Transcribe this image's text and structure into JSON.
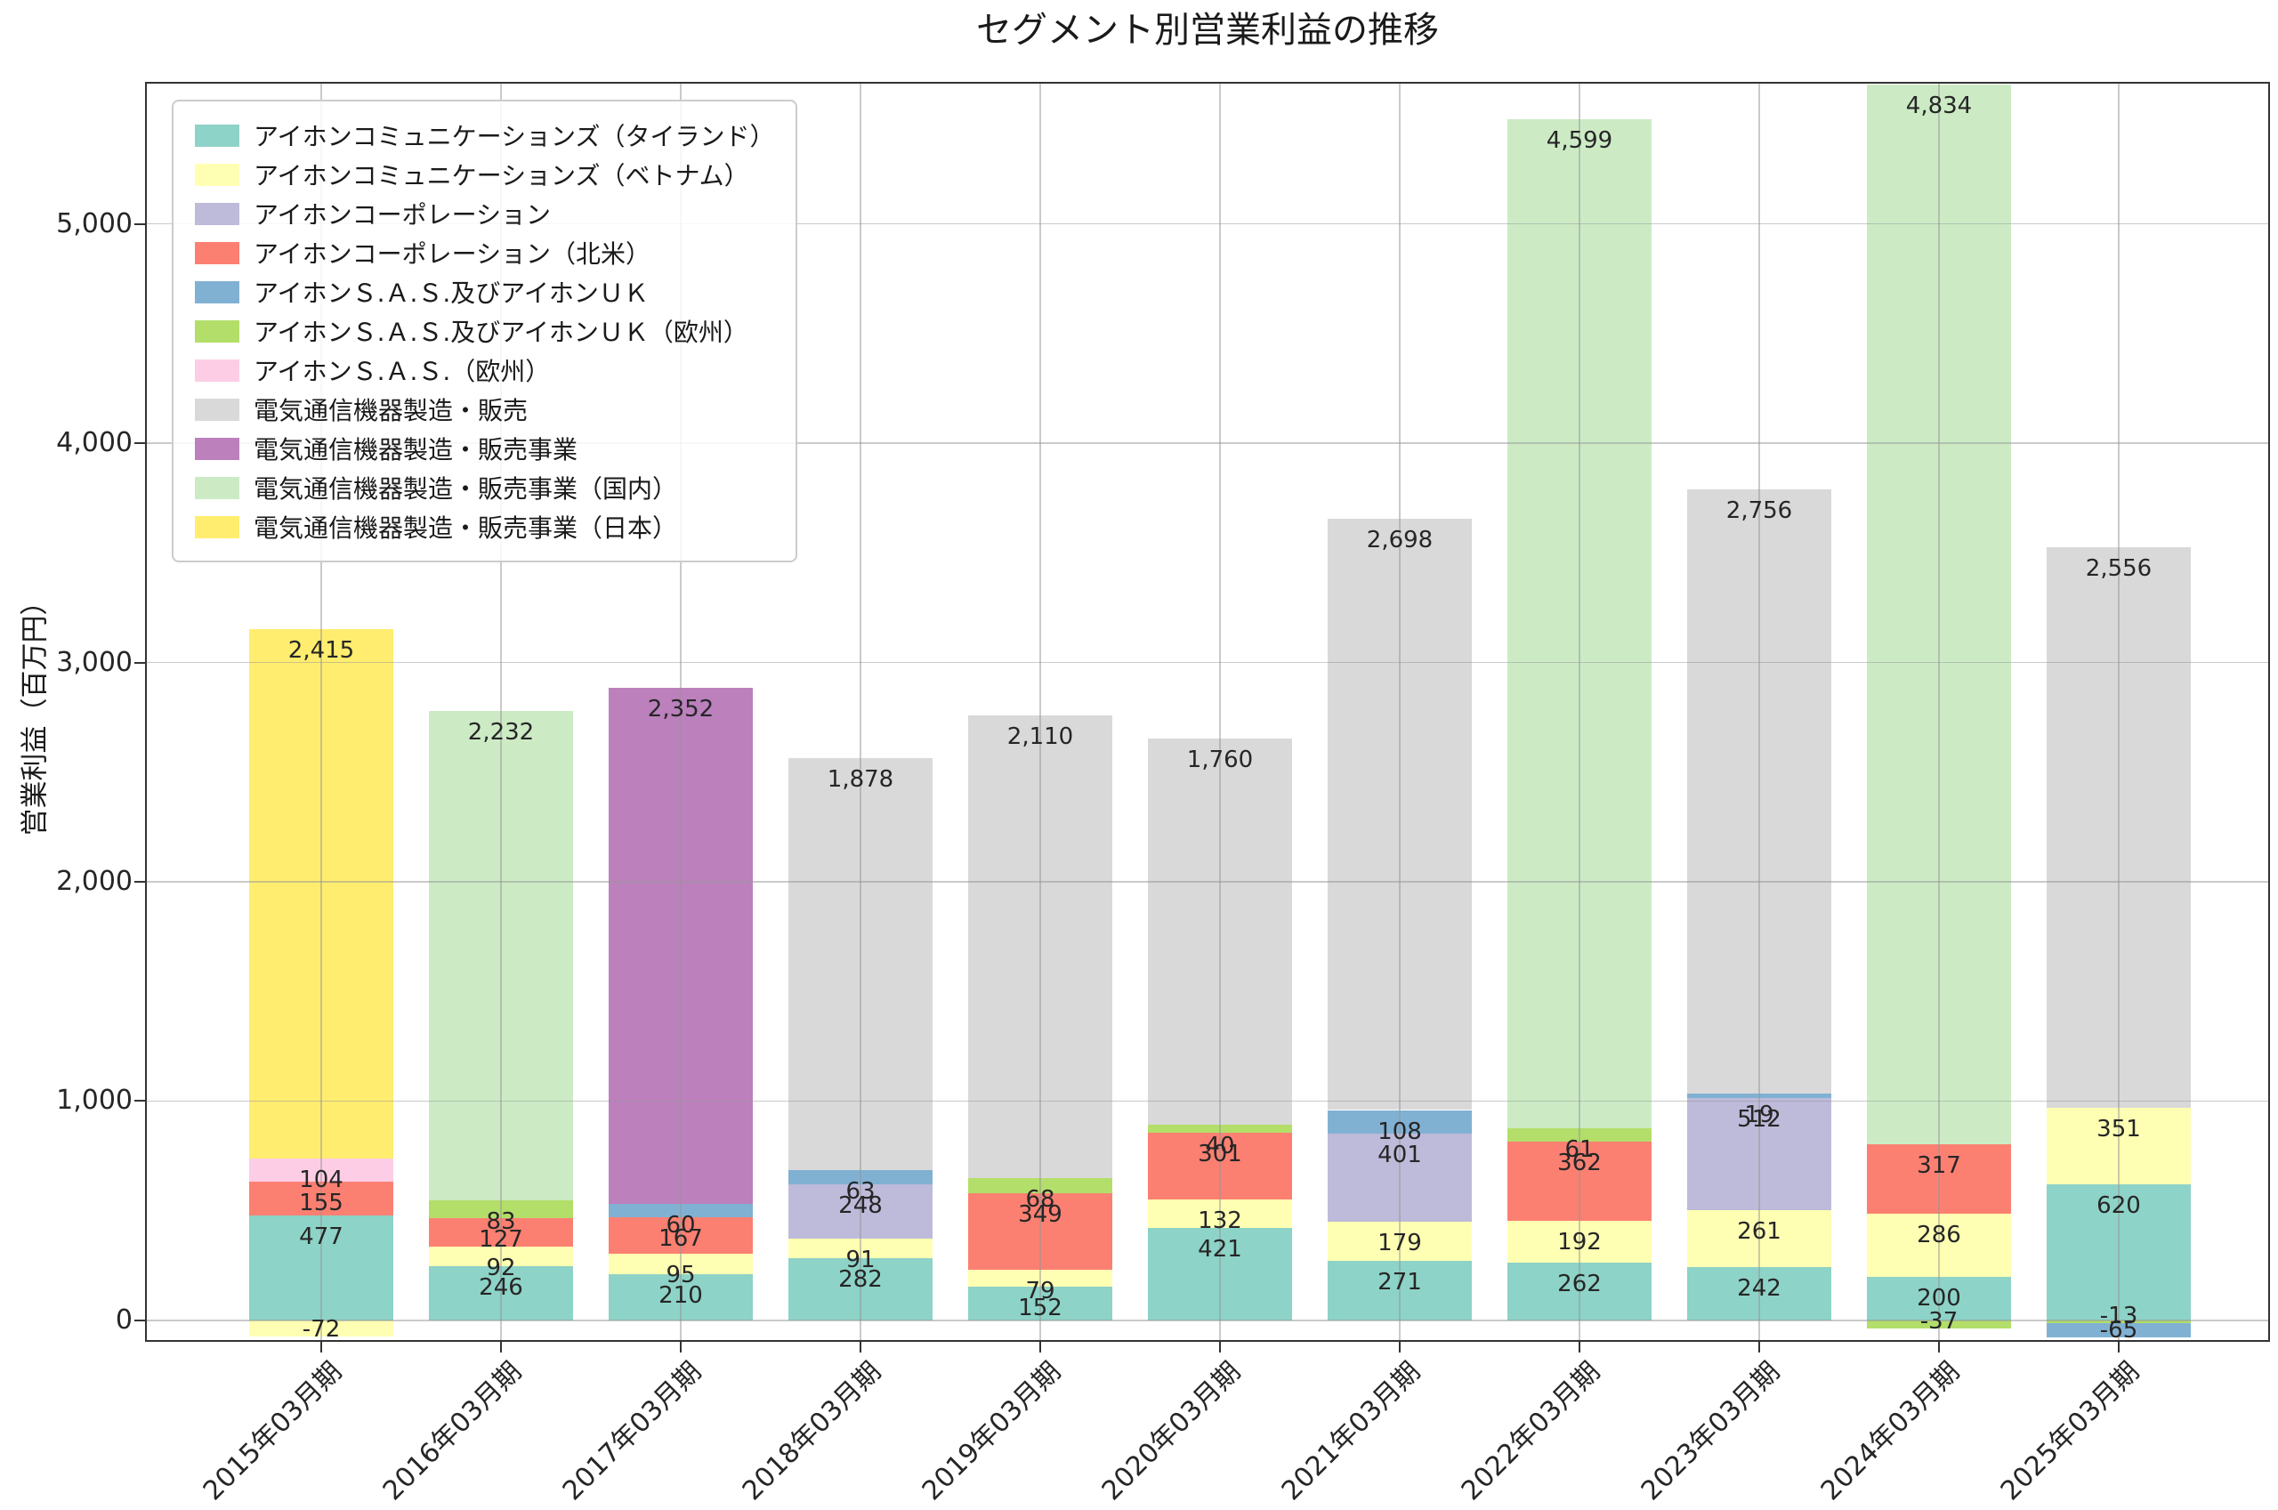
{
  "chart_data": {
    "type": "bar",
    "stacked": true,
    "title": "セグメント別営業利益の推移",
    "xlabel": "",
    "ylabel": "営業利益（百万円）",
    "ylim": [
      -90,
      5640
    ],
    "yticks": [
      0,
      1000,
      2000,
      3000,
      4000,
      5000
    ],
    "grid": true,
    "legend_position": "upper-left",
    "categories": [
      "2015年03月期",
      "2016年03月期",
      "2017年03月期",
      "2018年03月期",
      "2019年03月期",
      "2020年03月期",
      "2021年03月期",
      "2022年03月期",
      "2023年03月期",
      "2024年03月期",
      "2025年03月期"
    ],
    "series": [
      {
        "name": "アイホンコミュニケーションズ（タイランド）",
        "color": "#8dd3c7",
        "values": [
          477,
          246,
          210,
          282,
          152,
          421,
          271,
          262,
          242,
          200,
          620
        ]
      },
      {
        "name": "アイホンコミュニケーションズ（ベトナム）",
        "color": "#ffffb3",
        "values": [
          -72,
          92,
          95,
          91,
          79,
          132,
          179,
          192,
          261,
          286,
          351
        ]
      },
      {
        "name": "アイホンコーポレーション",
        "color": "#bebada",
        "values": [
          null,
          null,
          null,
          248,
          null,
          null,
          401,
          null,
          512,
          null,
          null
        ]
      },
      {
        "name": "アイホンコーポレーション（北米）",
        "color": "#fb8072",
        "values": [
          155,
          127,
          167,
          null,
          349,
          301,
          null,
          362,
          null,
          317,
          null
        ]
      },
      {
        "name": "アイホンＳ.Ａ.Ｓ.及びアイホンＵＫ",
        "color": "#80b1d3",
        "values": [
          null,
          null,
          60,
          63,
          null,
          null,
          108,
          null,
          19,
          null,
          -65
        ]
      },
      {
        "name": "アイホンＳ.Ａ.Ｓ.及びアイホンＵＫ（欧州）",
        "color": "#b3de69",
        "values": [
          null,
          83,
          null,
          null,
          68,
          40,
          null,
          61,
          null,
          -37,
          -13
        ]
      },
      {
        "name": "アイホンＳ.Ａ.Ｓ.（欧州）",
        "color": "#fccde5",
        "values": [
          104,
          null,
          null,
          null,
          null,
          null,
          null,
          null,
          null,
          null,
          null
        ]
      },
      {
        "name": "電気通信機器製造・販売",
        "color": "#d9d9d9",
        "values": [
          null,
          null,
          null,
          1878,
          2110,
          1760,
          2698,
          null,
          2756,
          null,
          2556
        ]
      },
      {
        "name": "電気通信機器製造・販売事業",
        "color": "#bc80bd",
        "values": [
          null,
          null,
          2352,
          null,
          null,
          null,
          null,
          null,
          null,
          null,
          null
        ]
      },
      {
        "name": "電気通信機器製造・販売事業（国内）",
        "color": "#ccebc5",
        "values": [
          null,
          2232,
          null,
          null,
          null,
          null,
          null,
          4599,
          null,
          4834,
          null
        ]
      },
      {
        "name": "電気通信機器製造・販売事業（日本）",
        "color": "#ffed6f",
        "values": [
          2415,
          null,
          null,
          null,
          null,
          null,
          null,
          null,
          null,
          null,
          null
        ]
      }
    ],
    "stack_order": [
      0,
      1,
      2,
      3,
      5,
      4,
      6,
      7,
      8,
      9,
      10
    ]
  }
}
